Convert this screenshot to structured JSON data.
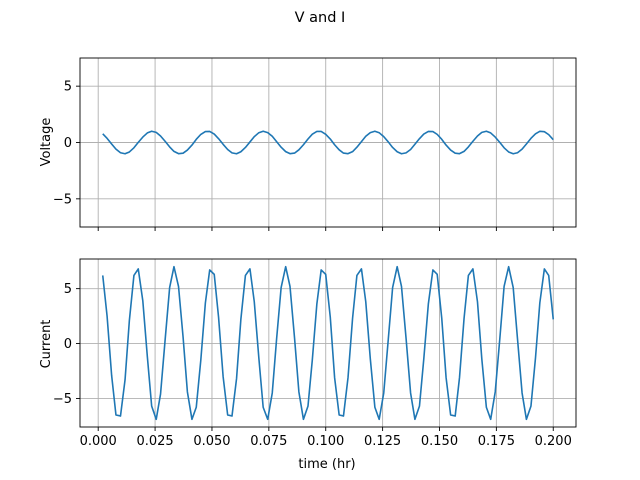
{
  "chart_data": {
    "title": "V and I",
    "type": "line",
    "shared_x": true,
    "xlabel": "time (hr)",
    "xlim": [
      -0.008,
      0.21
    ],
    "xticks": [
      0.0,
      0.025,
      0.05,
      0.075,
      0.1,
      0.125,
      0.15,
      0.175,
      0.2
    ],
    "xtick_labels": [
      "0.000",
      "0.025",
      "0.050",
      "0.075",
      "0.100",
      "0.125",
      "0.150",
      "0.175",
      "0.200"
    ],
    "grid": true,
    "color": "#1f77b4",
    "subplots": [
      {
        "ylabel": "Voltage",
        "ylim": [
          -7.5,
          7.5
        ],
        "yticks": [
          -5,
          0,
          5
        ],
        "ytick_labels": [
          "−5",
          "0",
          "5"
        ],
        "series": [
          {
            "x": [
              0.002,
              0.0039,
              0.0059,
              0.0078,
              0.0098,
              0.0118,
              0.0137,
              0.0157,
              0.0176,
              0.0196,
              0.0216,
              0.0235,
              0.0255,
              0.0274,
              0.0294,
              0.0314,
              0.0333,
              0.0353,
              0.0373,
              0.0392,
              0.0412,
              0.0431,
              0.0451,
              0.0471,
              0.049,
              0.051,
              0.0529,
              0.0549,
              0.0569,
              0.0588,
              0.0608,
              0.0627,
              0.0647,
              0.0667,
              0.0686,
              0.0706,
              0.0725,
              0.0745,
              0.0765,
              0.0784,
              0.0804,
              0.0824,
              0.0843,
              0.0863,
              0.0882,
              0.0902,
              0.0922,
              0.0941,
              0.0961,
              0.098,
              0.1,
              0.102,
              0.1039,
              0.1059,
              0.1078,
              0.1098,
              0.1118,
              0.1137,
              0.1157,
              0.1176,
              0.1196,
              0.1216,
              0.1235,
              0.1255,
              0.1275,
              0.1294,
              0.1314,
              0.1333,
              0.1353,
              0.1373,
              0.1392,
              0.1412,
              0.1431,
              0.1451,
              0.1471,
              0.149,
              0.151,
              0.1529,
              0.1549,
              0.1569,
              0.1588,
              0.1608,
              0.1627,
              0.1647,
              0.1667,
              0.1686,
              0.1706,
              0.1725,
              0.1745,
              0.1765,
              0.1784,
              0.1804,
              0.1824,
              0.1843,
              0.1863,
              0.1882,
              0.1902,
              0.1922,
              0.1941,
              0.1961,
              0.198,
              0.2
            ],
            "y": [
              0.77,
              0.37,
              -0.13,
              -0.59,
              -0.91,
              -1.0,
              -0.84,
              -0.47,
              0.01,
              0.48,
              0.85,
              1.0,
              0.9,
              0.58,
              0.11,
              -0.39,
              -0.79,
              -0.99,
              -0.95,
              -0.67,
              -0.23,
              0.28,
              0.72,
              0.97,
              0.98,
              0.75,
              0.34,
              -0.16,
              -0.62,
              -0.92,
              -1.0,
              -0.82,
              -0.44,
              0.05,
              0.52,
              0.87,
              1.0,
              0.88,
              0.55,
              0.08,
              -0.42,
              -0.81,
              -0.99,
              -0.94,
              -0.65,
              -0.2,
              0.31,
              0.74,
              0.98,
              0.98,
              0.73,
              0.31,
              -0.2,
              -0.65,
              -0.94,
              -0.99,
              -0.81,
              -0.42,
              0.08,
              0.55,
              0.88,
              1.0,
              0.87,
              0.52,
              0.05,
              -0.44,
              -0.82,
              -1.0,
              -0.92,
              -0.62,
              -0.16,
              0.34,
              0.75,
              0.98,
              0.97,
              0.72,
              0.28,
              -0.23,
              -0.67,
              -0.95,
              -0.99,
              -0.79,
              -0.39,
              0.11,
              0.58,
              0.9,
              1.0,
              0.85,
              0.48,
              0.01,
              -0.47,
              -0.84,
              -1.0,
              -0.91,
              -0.59,
              -0.13,
              0.37,
              0.77,
              0.99,
              0.96,
              0.7,
              0.25
            ]
          }
        ]
      },
      {
        "ylabel": "Current",
        "ylim": [
          -7.6,
          7.7
        ],
        "yticks": [
          -5,
          0,
          5
        ],
        "ytick_labels": [
          "−5",
          "0",
          "5"
        ],
        "series": [
          {
            "x": [
              0.002,
              0.0039,
              0.0059,
              0.0078,
              0.0098,
              0.0118,
              0.0137,
              0.0157,
              0.0176,
              0.0196,
              0.0216,
              0.0235,
              0.0255,
              0.0274,
              0.0294,
              0.0314,
              0.0333,
              0.0353,
              0.0373,
              0.0392,
              0.0412,
              0.0431,
              0.0451,
              0.0471,
              0.049,
              0.051,
              0.0529,
              0.0549,
              0.0569,
              0.0588,
              0.0608,
              0.0627,
              0.0647,
              0.0667,
              0.0686,
              0.0706,
              0.0725,
              0.0745,
              0.0765,
              0.0784,
              0.0804,
              0.0824,
              0.0843,
              0.0863,
              0.0882,
              0.0902,
              0.0922,
              0.0941,
              0.0961,
              0.098,
              0.1,
              0.102,
              0.1039,
              0.1059,
              0.1078,
              0.1098,
              0.1118,
              0.1137,
              0.1157,
              0.1176,
              0.1196,
              0.1216,
              0.1235,
              0.1255,
              0.1275,
              0.1294,
              0.1314,
              0.1333,
              0.1353,
              0.1373,
              0.1392,
              0.1412,
              0.1431,
              0.1451,
              0.1471,
              0.149,
              0.151,
              0.1529,
              0.1549,
              0.1569,
              0.1588,
              0.1608,
              0.1627,
              0.1647,
              0.1667,
              0.1686,
              0.1706,
              0.1725,
              0.1745,
              0.1765,
              0.1784,
              0.1804,
              0.1824,
              0.1843,
              0.1863,
              0.1882,
              0.1902,
              0.1922,
              0.1941,
              0.1961,
              0.198,
              0.2
            ],
            "y": [
              6.2,
              2.5,
              -2.9,
              -6.5,
              -6.6,
              -3.3,
              2.1,
              6.2,
              6.8,
              3.9,
              -1.2,
              -5.7,
              -6.9,
              -4.6,
              0.3,
              5.1,
              7.0,
              5.2,
              0.6,
              -4.4,
              -6.9,
              -5.8,
              -1.5,
              3.7,
              6.7,
              6.3,
              2.4,
              -3.0,
              -6.5,
              -6.6,
              -3.2,
              2.2,
              6.2,
              6.8,
              3.8,
              -1.3,
              -5.8,
              -6.9,
              -4.5,
              0.4,
              5.1,
              7.0,
              5.2,
              0.5,
              -4.4,
              -6.9,
              -5.7,
              -1.5,
              3.6,
              6.7,
              6.3,
              2.4,
              -3.1,
              -6.5,
              -6.6,
              -3.1,
              2.3,
              6.2,
              6.8,
              3.8,
              -1.4,
              -5.8,
              -6.9,
              -4.5,
              0.4,
              5.1,
              7.0,
              5.2,
              0.5,
              -4.5,
              -6.9,
              -5.7,
              -1.4,
              3.6,
              6.7,
              6.3,
              2.3,
              -3.1,
              -6.5,
              -6.6,
              -3.1,
              2.3,
              6.2,
              6.8,
              3.8,
              -1.4,
              -5.8,
              -6.9,
              -4.4,
              0.4,
              5.2,
              7.0,
              5.1,
              0.4,
              -4.5,
              -6.9,
              -5.7,
              -1.3,
              3.7,
              6.8,
              6.2,
              2.2
            ]
          }
        ]
      }
    ]
  }
}
